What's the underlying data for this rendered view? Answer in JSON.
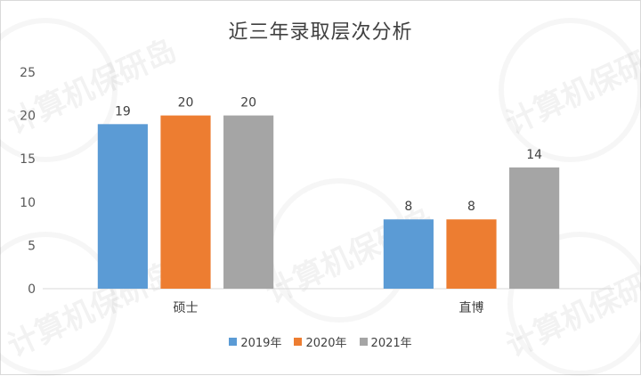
{
  "watermark": "计算机保研岛",
  "chart_data": {
    "type": "bar",
    "title": "近三年录取层次分析",
    "categories": [
      "硕士",
      "直博"
    ],
    "series": [
      {
        "name": "2019年",
        "values": [
          19,
          8
        ],
        "color": "#5b9bd5"
      },
      {
        "name": "2020年",
        "values": [
          20,
          8
        ],
        "color": "#ed7d31"
      },
      {
        "name": "2021年",
        "values": [
          20,
          14
        ],
        "color": "#a5a5a5"
      }
    ],
    "ylim": [
      0,
      25
    ],
    "yticks": [
      0,
      5,
      10,
      15,
      20,
      25
    ],
    "grid": false,
    "legend": "bottom",
    "data_labels": true
  }
}
